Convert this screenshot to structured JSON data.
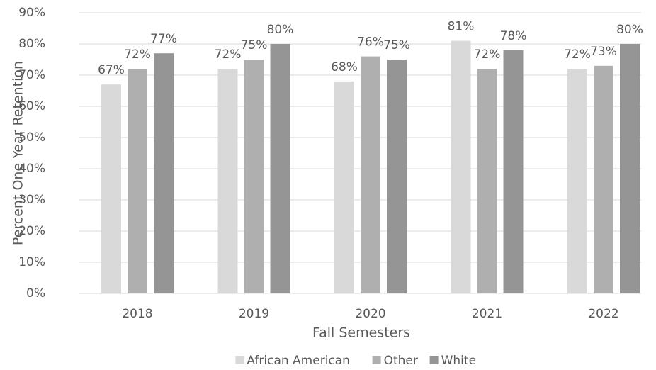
{
  "chart_data": {
    "type": "bar",
    "y_label": "Percent One Year Retention",
    "x_label": "Fall Semesters",
    "categories": [
      "2018",
      "2019",
      "2020",
      "2021",
      "2022"
    ],
    "series": [
      {
        "name": "African American",
        "color": "#d9d9d9",
        "values": [
          67,
          72,
          68,
          81,
          72
        ],
        "value_labels": [
          "67%",
          "72%",
          "68%",
          "81%",
          "72%"
        ]
      },
      {
        "name": "Other",
        "color": "#afafaf",
        "values": [
          72,
          75,
          76,
          72,
          73
        ],
        "value_labels": [
          "72%",
          "75%",
          "76%",
          "72%",
          "73%"
        ]
      },
      {
        "name": "White",
        "color": "#959595",
        "values": [
          77,
          80,
          75,
          78,
          80
        ],
        "value_labels": [
          "77%",
          "80%",
          "75%",
          "78%",
          "80%"
        ]
      }
    ],
    "ylim": [
      0,
      90
    ],
    "yticks": [
      {
        "value": 0,
        "label": "0%"
      },
      {
        "value": 10,
        "label": "10%"
      },
      {
        "value": 20,
        "label": "20%"
      },
      {
        "value": 30,
        "label": "30%"
      },
      {
        "value": 40,
        "label": "40%"
      },
      {
        "value": 50,
        "label": "50%"
      },
      {
        "value": 60,
        "label": "60%"
      },
      {
        "value": 70,
        "label": "70%"
      },
      {
        "value": 80,
        "label": "80%"
      },
      {
        "value": 90,
        "label": "90%"
      }
    ],
    "grid": true,
    "legend": "bottom"
  }
}
